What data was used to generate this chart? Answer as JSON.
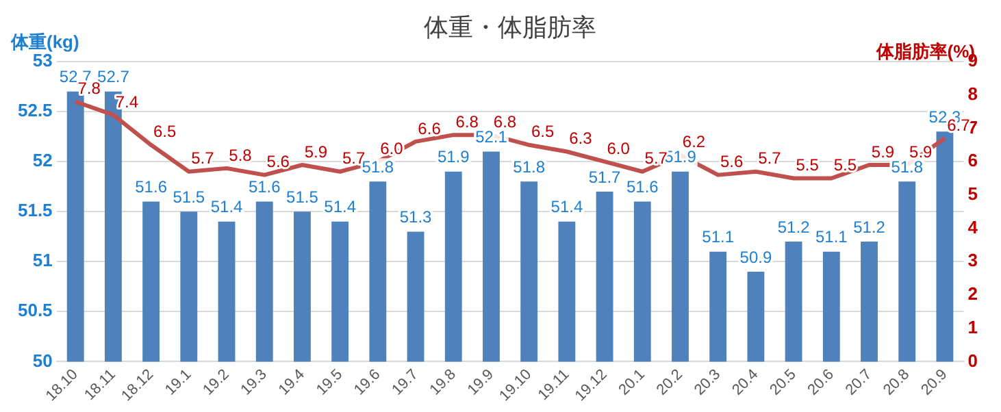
{
  "chart_data": {
    "type": "bar",
    "title": "体重・体脂肪率",
    "ylabel": "体重(kg)",
    "y2label": "体脂肪率(%)",
    "categories": [
      "18.10",
      "18.11",
      "18.12",
      "19.1",
      "19.2",
      "19.3",
      "19.4",
      "19.5",
      "19.6",
      "19.7",
      "19.8",
      "19.9",
      "19.10",
      "19.11",
      "19.12",
      "20.1",
      "20.2",
      "20.3",
      "20.4",
      "20.5",
      "20.6",
      "20.7",
      "20.8",
      "20.9"
    ],
    "series": [
      {
        "color": "#4f81bd",
        "values": [
          52.7,
          52.7,
          51.6,
          51.5,
          51.4,
          51.6,
          51.5,
          51.4,
          51.8,
          51.3,
          51.9,
          52.1,
          51.8,
          51.4,
          51.7,
          51.6,
          51.9,
          51.1,
          50.9,
          51.2,
          51.1,
          51.2,
          51.8,
          52.3
        ]
      },
      {
        "type": "line",
        "axis": "y2",
        "color": "#c0504d",
        "values": [
          7.8,
          7.4,
          6.5,
          5.7,
          5.8,
          5.6,
          5.9,
          5.7,
          6.0,
          6.6,
          6.8,
          6.8,
          6.5,
          6.3,
          6.0,
          5.7,
          6.2,
          5.6,
          5.7,
          5.5,
          5.5,
          5.9,
          5.9,
          6.7
        ],
        "value_labels": [
          "7.8",
          "7.4",
          "6.5",
          "5.7",
          "5.8",
          "5.6",
          "5.9",
          "5.7",
          "6.0",
          "6.6",
          "6.8",
          "6.8",
          "6.5",
          "6.3",
          "6.0",
          "5.7",
          "6.2",
          "5.6",
          "5.7",
          "5.5",
          "5.5",
          "5.9",
          "5.9",
          "6.7"
        ]
      }
    ],
    "ylim": [
      50,
      53
    ],
    "yticks": [
      50,
      50.5,
      51,
      51.5,
      52,
      52.5,
      53
    ],
    "y2lim": [
      0,
      9
    ],
    "y2ticks": [
      0,
      1,
      2,
      3,
      4,
      5,
      6,
      7,
      8,
      9
    ],
    "grid": "y",
    "legend": false,
    "marker": "none",
    "data_labels": true
  }
}
